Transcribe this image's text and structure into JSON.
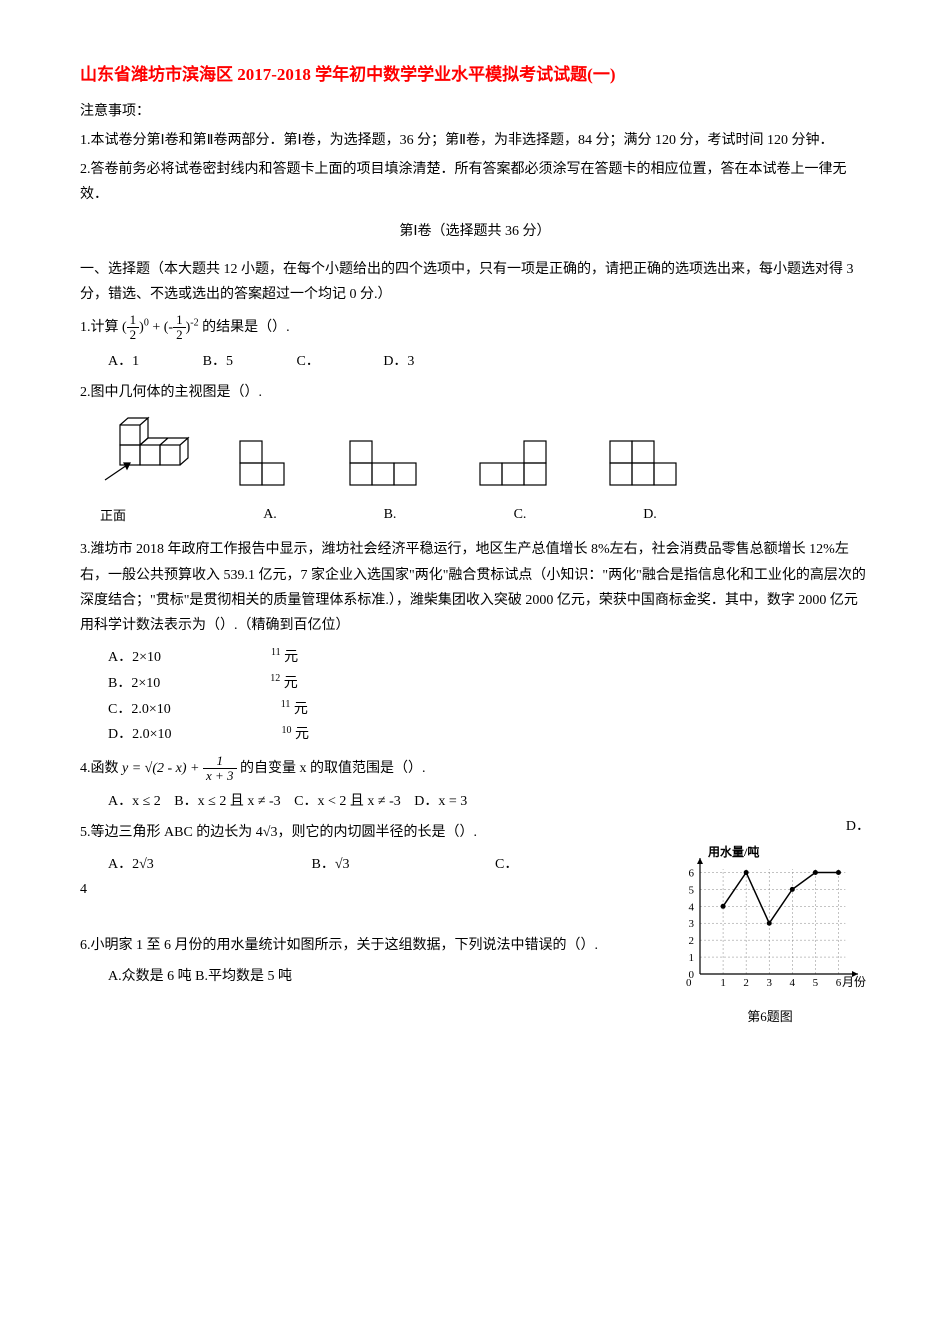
{
  "title": "山东省潍坊市滨海区 2017-2018 学年初中数学学业水平模拟考试试题(一)",
  "notice_label": "注意事项：",
  "notice_1": "1.本试卷分第Ⅰ卷和第Ⅱ卷两部分．第Ⅰ卷，为选择题，36 分；第Ⅱ卷，为非选择题，84 分；满分 120 分，考试时间 120 分钟．",
  "notice_2": "2.答卷前务必将试卷密封线内和答题卡上面的项目填涂清楚．所有答案都必须涂写在答题卡的相应位置，答在本试卷上一律无效．",
  "part1_header": "第Ⅰ卷（选择题共 36 分）",
  "section1_header": "一、选择题（本大题共 12 小题，在每个小题给出的四个选项中，只有一项是正确的，请把正确的选项选出来，每小题选对得 3 分，错选、不选或选出的答案超过一个均记 0 分.）",
  "q1": {
    "prefix": "1.计算 ",
    "suffix": " 的结果是（）.",
    "optA": "A．1",
    "optB": "B．5",
    "optC": "C．",
    "optD": "D．3"
  },
  "q2": {
    "text": "2.图中几何体的主视图是（）.",
    "label_front": "正面",
    "labels": [
      "A.",
      "B.",
      "C.",
      "D."
    ]
  },
  "q3": {
    "text": "3.潍坊市 2018 年政府工作报告中显示，潍坊社会经济平稳运行，地区生产总值增长 8%左右，社会消费品零售总额增长 12%左右，一般公共预算收入 539.1 亿元，7 家企业入选国家\"两化\"融合贯标试点（小知识：\"两化\"融合是指信息化和工业化的高层次的深度结合；\"贯标\"是贯彻相关的质量管理体系标准.），潍柴集团收入突破 2000 亿元，荣获中国商标金奖．其中，数字 2000 亿元用科学计数法表示为（）.（精确到百亿位）",
    "optA": "A．2×10",
    "optA_exp": "11",
    "optA_unit": "元",
    "optB": "B．2×10",
    "optB_exp": "12",
    "optB_unit": "元",
    "optC": "C．2.0×10",
    "optC_exp": "11",
    "optC_unit": "元",
    "optD": "D．2.0×10",
    "optD_exp": "10",
    "optD_unit": "元"
  },
  "q4": {
    "prefix": "4.函数 ",
    "suffix": " 的自变量 x 的取值范围是（）.",
    "optA": "A．x ≤ 2",
    "optB": "B．x ≤ 2 且 x ≠ -3",
    "optC": "C．x < 2 且 x ≠ -3",
    "optD": "D．x = 3"
  },
  "q5": {
    "text": "5.等边三角形 ABC 的边长为 4√3，则它的内切圆半径的长是（）.",
    "optA": "A．2√3",
    "optB": "B．√3",
    "optC": "C．",
    "optD": "D．",
    "line2": "4"
  },
  "q6": {
    "text1": "6.小明家 1 至 6 月份的用水量统计如图所示，关于这组数据，下列说法中错误的（）.",
    "text2": "A.众数是 6 吨  B.平均数是 5 吨",
    "chart": {
      "y_label": "用水量/吨",
      "x_label": "月份",
      "caption": "第6题图",
      "x_ticks": [
        1,
        2,
        3,
        4,
        5,
        6
      ],
      "y_ticks": [
        0,
        1,
        2,
        3,
        4,
        5,
        6
      ],
      "points": [
        {
          "x": 1,
          "y": 4
        },
        {
          "x": 2,
          "y": 6
        },
        {
          "x": 3,
          "y": 3
        },
        {
          "x": 4,
          "y": 5
        },
        {
          "x": 5,
          "y": 6
        },
        {
          "x": 6,
          "y": 6
        }
      ],
      "line_color": "#000000",
      "grid_color": "#888888"
    }
  }
}
